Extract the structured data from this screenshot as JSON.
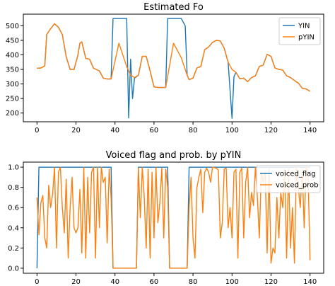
{
  "colors": {
    "series1": "#1f77b4",
    "series2": "#ff7f0e"
  },
  "chart_data": [
    {
      "type": "line",
      "title": "Estimated Fo",
      "xlim": [
        -7,
        147
      ],
      "ylim": [
        170,
        540
      ],
      "xticks": [
        0,
        20,
        40,
        60,
        80,
        100,
        120,
        140
      ],
      "yticks": [
        200,
        250,
        300,
        350,
        400,
        450,
        500
      ],
      "legend_position": "top-right",
      "series": [
        {
          "name": "YIN",
          "points": [
            [
              0,
              354
            ],
            [
              2,
              355
            ],
            [
              4,
              362
            ],
            [
              5,
              470
            ],
            [
              7,
              490
            ],
            [
              9,
              507
            ],
            [
              11,
              495
            ],
            [
              13,
              470
            ],
            [
              15,
              393
            ],
            [
              17,
              350
            ],
            [
              19,
              350
            ],
            [
              21,
              400
            ],
            [
              22,
              440
            ],
            [
              23,
              445
            ],
            [
              25,
              388
            ],
            [
              27,
              385
            ],
            [
              29,
              354
            ],
            [
              32,
              345
            ],
            [
              34,
              320
            ],
            [
              36,
              317
            ],
            [
              38,
              317
            ],
            [
              39,
              525
            ],
            [
              46,
              525
            ],
            [
              47,
              183
            ],
            [
              48,
              385
            ],
            [
              49,
              250
            ],
            [
              50,
              320
            ],
            [
              52,
              330
            ],
            [
              54,
              395
            ],
            [
              56,
              395
            ],
            [
              58,
              345
            ],
            [
              60,
              290
            ],
            [
              62,
              288
            ],
            [
              64,
              288
            ],
            [
              66,
              288
            ],
            [
              67,
              525
            ],
            [
              74,
              525
            ],
            [
              76,
              500
            ],
            [
              77,
              330
            ],
            [
              78,
              315
            ],
            [
              80,
              320
            ],
            [
              82,
              355
            ],
            [
              84,
              360
            ],
            [
              86,
              418
            ],
            [
              88,
              427
            ],
            [
              90,
              443
            ],
            [
              92,
              450
            ],
            [
              94,
              448
            ],
            [
              96,
              423
            ],
            [
              98,
              375
            ],
            [
              100,
              182
            ],
            [
              101,
              325
            ],
            [
              102,
              340
            ],
            [
              104,
              318
            ],
            [
              106,
              320
            ],
            [
              108,
              308
            ],
            [
              110,
              322
            ],
            [
              112,
              328
            ],
            [
              114,
              360
            ],
            [
              116,
              365
            ],
            [
              118,
              402
            ],
            [
              120,
              395
            ],
            [
              122,
              355
            ],
            [
              124,
              350
            ],
            [
              126,
              348
            ],
            [
              128,
              328
            ],
            [
              130,
              322
            ],
            [
              132,
              312
            ],
            [
              134,
              303
            ],
            [
              136,
              285
            ],
            [
              138,
              283
            ],
            [
              140,
              275
            ]
          ]
        },
        {
          "name": "pYIN",
          "points": [
            [
              0,
              354
            ],
            [
              2,
              355
            ],
            [
              4,
              362
            ],
            [
              5,
              470
            ],
            [
              7,
              490
            ],
            [
              9,
              507
            ],
            [
              11,
              495
            ],
            [
              13,
              470
            ],
            [
              15,
              393
            ],
            [
              17,
              350
            ],
            [
              19,
              350
            ],
            [
              21,
              400
            ],
            [
              22,
              440
            ],
            [
              23,
              445
            ],
            [
              25,
              388
            ],
            [
              27,
              385
            ],
            [
              29,
              354
            ],
            [
              32,
              345
            ],
            [
              34,
              320
            ],
            [
              36,
              317
            ],
            [
              38,
              317
            ],
            [
              42,
              440
            ],
            [
              46,
              360
            ],
            [
              48,
              330
            ],
            [
              50,
              322
            ],
            [
              52,
              330
            ],
            [
              54,
              395
            ],
            [
              56,
              395
            ],
            [
              58,
              345
            ],
            [
              60,
              290
            ],
            [
              62,
              288
            ],
            [
              64,
              288
            ],
            [
              66,
              288
            ],
            [
              70,
              440
            ],
            [
              74,
              390
            ],
            [
              76,
              350
            ],
            [
              77,
              330
            ],
            [
              78,
              315
            ],
            [
              80,
              320
            ],
            [
              82,
              355
            ],
            [
              84,
              360
            ],
            [
              86,
              418
            ],
            [
              88,
              427
            ],
            [
              90,
              443
            ],
            [
              92,
              450
            ],
            [
              94,
              448
            ],
            [
              96,
              423
            ],
            [
              98,
              375
            ],
            [
              100,
              350
            ],
            [
              102,
              340
            ],
            [
              104,
              318
            ],
            [
              106,
              320
            ],
            [
              108,
              308
            ],
            [
              110,
              322
            ],
            [
              112,
              328
            ],
            [
              114,
              360
            ],
            [
              116,
              365
            ],
            [
              118,
              402
            ],
            [
              120,
              395
            ],
            [
              122,
              355
            ],
            [
              124,
              350
            ],
            [
              126,
              348
            ],
            [
              128,
              328
            ],
            [
              130,
              322
            ],
            [
              132,
              312
            ],
            [
              134,
              303
            ],
            [
              136,
              285
            ],
            [
              138,
              283
            ],
            [
              140,
              275
            ]
          ]
        }
      ]
    },
    {
      "type": "line",
      "title": "Voiced flag and prob. by pYIN",
      "xlim": [
        -7,
        147
      ],
      "ylim": [
        -0.05,
        1.05
      ],
      "xticks": [
        0,
        20,
        40,
        60,
        80,
        100,
        120,
        140
      ],
      "yticks": [
        0.0,
        0.2,
        0.4,
        0.6,
        0.8,
        1.0
      ],
      "yticklabels": [
        "0.0",
        "0.2",
        "0.4",
        "0.6",
        "0.8",
        "1.0"
      ],
      "legend_position": "top-right",
      "series": [
        {
          "name": "voiced_flag",
          "points": [
            [
              0,
              0
            ],
            [
              1,
              1
            ],
            [
              38,
              1
            ],
            [
              39,
              0
            ],
            [
              51,
              0
            ],
            [
              52,
              1
            ],
            [
              67,
              1
            ],
            [
              68,
              0
            ],
            [
              77,
              0
            ],
            [
              78,
              1
            ],
            [
              140,
              1
            ]
          ]
        },
        {
          "name": "voiced_prob",
          "points": [
            [
              0,
              0.7
            ],
            [
              1,
              0.33
            ],
            [
              2,
              0.65
            ],
            [
              3,
              0.72
            ],
            [
              4,
              0.3
            ],
            [
              5,
              0.2
            ],
            [
              6,
              0.82
            ],
            [
              7,
              0.6
            ],
            [
              8,
              0.73
            ],
            [
              9,
              1.0
            ],
            [
              10,
              0.2
            ],
            [
              11,
              0.95
            ],
            [
              12,
              1.0
            ],
            [
              13,
              0.6
            ],
            [
              14,
              0.35
            ],
            [
              15,
              0.88
            ],
            [
              16,
              0.1
            ],
            [
              17,
              0.6
            ],
            [
              18,
              0.9
            ],
            [
              19,
              0.4
            ],
            [
              20,
              0.35
            ],
            [
              21,
              0.4
            ],
            [
              22,
              0.78
            ],
            [
              23,
              0.15
            ],
            [
              24,
              1.0
            ],
            [
              25,
              0.1
            ],
            [
              26,
              0.9
            ],
            [
              27,
              0.35
            ],
            [
              28,
              0.95
            ],
            [
              29,
              1.0
            ],
            [
              30,
              0.1
            ],
            [
              31,
              1.0
            ],
            [
              32,
              0.4
            ],
            [
              33,
              1.0
            ],
            [
              34,
              0.85
            ],
            [
              35,
              0.9
            ],
            [
              36,
              0.25
            ],
            [
              37,
              0.98
            ],
            [
              38,
              0.7
            ],
            [
              39,
              0.0
            ],
            [
              51,
              0.0
            ],
            [
              52,
              0.99
            ],
            [
              53,
              0.5
            ],
            [
              54,
              1.0
            ],
            [
              55,
              0.7
            ],
            [
              56,
              0.2
            ],
            [
              57,
              0.98
            ],
            [
              58,
              0.1
            ],
            [
              59,
              0.95
            ],
            [
              60,
              0.3
            ],
            [
              61,
              1.0
            ],
            [
              62,
              0.45
            ],
            [
              63,
              0.65
            ],
            [
              64,
              0.99
            ],
            [
              65,
              0.3
            ],
            [
              66,
              0.98
            ],
            [
              67,
              0.8
            ],
            [
              68,
              0.0
            ],
            [
              77,
              0.0
            ],
            [
              78,
              0.6
            ],
            [
              79,
              0.9
            ],
            [
              80,
              0.3
            ],
            [
              81,
              0.1
            ],
            [
              82,
              0.8
            ],
            [
              83,
              0.9
            ],
            [
              84,
              0.98
            ],
            [
              85,
              0.55
            ],
            [
              86,
              0.95
            ],
            [
              87,
              0.99
            ],
            [
              88,
              0.95
            ],
            [
              89,
              0.85
            ],
            [
              90,
              1.0
            ],
            [
              92,
              0.99
            ],
            [
              93,
              0.97
            ],
            [
              94,
              0.3
            ],
            [
              95,
              0.45
            ],
            [
              96,
              0.98
            ],
            [
              97,
              0.99
            ],
            [
              98,
              0.4
            ],
            [
              99,
              0.6
            ],
            [
              100,
              0.3
            ],
            [
              101,
              0.95
            ],
            [
              102,
              0.98
            ],
            [
              103,
              0.1
            ],
            [
              104,
              0.95
            ],
            [
              105,
              0.99
            ],
            [
              106,
              0.3
            ],
            [
              107,
              0.85
            ],
            [
              108,
              1.0
            ],
            [
              109,
              0.5
            ],
            [
              110,
              0.75
            ],
            [
              111,
              0.62
            ],
            [
              112,
              1.0
            ],
            [
              113,
              0.7
            ],
            [
              114,
              0.3
            ],
            [
              115,
              0.95
            ],
            [
              116,
              0.85
            ],
            [
              117,
              0.95
            ],
            [
              118,
              0.15
            ],
            [
              119,
              0.98
            ],
            [
              120,
              0.05
            ],
            [
              121,
              0.2
            ],
            [
              122,
              0.15
            ],
            [
              123,
              0.7
            ],
            [
              124,
              0.3
            ],
            [
              125,
              0.75
            ],
            [
              126,
              0.6
            ],
            [
              127,
              0.98
            ],
            [
              128,
              0.1
            ],
            [
              129,
              0.98
            ],
            [
              130,
              0.2
            ],
            [
              131,
              0.6
            ],
            [
              132,
              0.05
            ],
            [
              133,
              1.0
            ],
            [
              134,
              0.8
            ],
            [
              135,
              0.6
            ],
            [
              136,
              0.98
            ],
            [
              137,
              0.4
            ],
            [
              138,
              1.0
            ],
            [
              139,
              0.95
            ],
            [
              140,
              0.08
            ]
          ]
        }
      ]
    }
  ]
}
